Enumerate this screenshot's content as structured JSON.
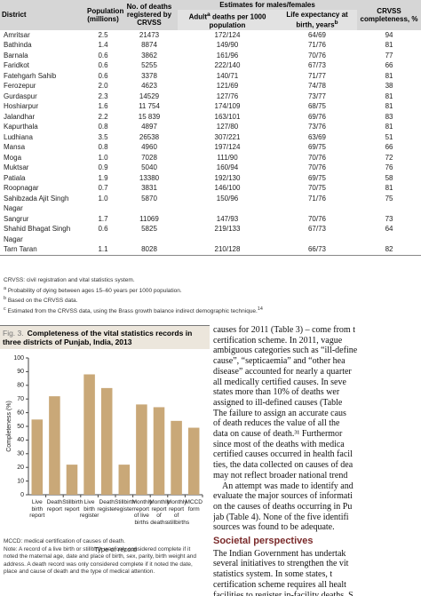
{
  "table": {
    "header": {
      "district": "District",
      "population": "Population (millions)",
      "deaths": "No. of deaths registered by CRVSS",
      "estimates": "Estimates for males/females",
      "adult_pre": "Adult",
      "adult_sup": "a",
      "adult_post": "deaths per 1000 population",
      "life": "Life expectancy at birth, years",
      "life_sup": "b",
      "completeness": "CRVSS completeness, %"
    },
    "rows": [
      [
        "Amritsar",
        "2.5",
        "21473",
        "172/124",
        "64/69",
        "94"
      ],
      [
        "Bathinda",
        "1.4",
        "8874",
        "149/90",
        "71/76",
        "81"
      ],
      [
        "Barnala",
        "0.6",
        "3862",
        "161/96",
        "70/76",
        "77"
      ],
      [
        "Faridkot",
        "0.6",
        "5255",
        "222/140",
        "67/73",
        "66"
      ],
      [
        "Fatehgarh Sahib",
        "0.6",
        "3378",
        "140/71",
        "71/77",
        "81"
      ],
      [
        "Ferozepur",
        "2.0",
        "4623",
        "121/69",
        "74/78",
        "38"
      ],
      [
        "Gurdaspur",
        "2.3",
        "14529",
        "127/76",
        "73/77",
        "81"
      ],
      [
        "Hoshiarpur",
        "1.6",
        "11 754",
        "174/109",
        "68/75",
        "81"
      ],
      [
        "Jalandhar",
        "2.2",
        "15 839",
        "163/101",
        "69/76",
        "83"
      ],
      [
        "Kapurthala",
        "0.8",
        "4897",
        "127/80",
        "73/76",
        "81"
      ],
      [
        "Ludhiana",
        "3.5",
        "26538",
        "307/221",
        "63/69",
        "51"
      ],
      [
        "Mansa",
        "0.8",
        "4960",
        "197/124",
        "69/75",
        "66"
      ],
      [
        "Moga",
        "1.0",
        "7028",
        "111/90",
        "70/76",
        "72"
      ],
      [
        "Muktsar",
        "0.9",
        "5040",
        "160/94",
        "70/76",
        "76"
      ],
      [
        "Patiala",
        "1.9",
        "13380",
        "192/130",
        "69/75",
        "58"
      ],
      [
        "Roopnagar",
        "0.7",
        "3831",
        "146/100",
        "70/75",
        "81"
      ],
      [
        "Sahibzada Ajit Singh Nagar",
        "1.0",
        "5870",
        "150/96",
        "71/76",
        "75"
      ],
      [
        "Sangrur",
        "1.7",
        "11069",
        "147/93",
        "70/76",
        "73"
      ],
      [
        "Shahid Bhagat Singh Nagar",
        "0.6",
        "5825",
        "219/133",
        "67/73",
        "64"
      ],
      [
        "Tarn Taran",
        "1.1",
        "8028",
        "210/128",
        "66/73",
        "82"
      ]
    ]
  },
  "footnotes": {
    "abbrev": "CRVSS: civil registration and vital statistics system.",
    "notes": [
      {
        "sup": "a",
        "text": "Probability of dying between ages 15–60 years per 1000 population."
      },
      {
        "sup": "b",
        "text": "Based on the CRVSS data."
      },
      {
        "sup": "c",
        "text": "Estimated from the CRVSS data, using the Brass growth balance indirect demographic technique.",
        "ref": "14"
      }
    ]
  },
  "chart_data": {
    "type": "bar",
    "figure_label": "Fig. 3.",
    "title": "Completeness of the vital statistics records in three districts of Punjab, India, 2013",
    "y_label": "Completeness (%)",
    "x_label": "Type of record",
    "categories": [
      "Live birth report",
      "Death report",
      "Stillbirth report",
      "Live birth register",
      "Death register",
      "Stillbirth register",
      "Monthly report of live births",
      "Monthly report of deaths",
      "Monthly report of stillbirths",
      "MCCD form"
    ],
    "values": [
      55,
      72,
      22,
      88,
      78,
      22,
      66,
      64,
      54,
      49
    ],
    "color": "#c9a878",
    "ylim": [
      0,
      100
    ],
    "yticks": [
      0,
      10,
      20,
      30,
      40,
      50,
      60,
      70,
      80,
      90,
      100
    ],
    "grid": false
  },
  "figure_notes": [
    "MCCD: medical certification of causes of death.",
    "Note: A record of a live birth or stillbirth was only considered complete if it noted the maternal age, date and place of birth, sex, parity, birth weight and address. A death record was only considered complete if it noted the date, place and cause of death and the type of medical attention."
  ],
  "body_text": {
    "paragraph_1": [
      "causes for 2011 (Table 3) – come from t",
      "certification scheme. In 2011, vague",
      "ambiguous categories such as “ill-define",
      "cause”, “septicaemia” and “other hea",
      "disease” accounted for nearly a quarter",
      "all medically certified causes. In seve",
      "states more than 10% of deaths wer",
      "assigned to ill-defined causes (Table",
      "The failure to assign an accurate caus",
      "of death reduces the value of all the",
      "data on cause of death.³¹ Furthermor",
      "since most of the deaths with medica",
      "certified causes occurred in health facil",
      "ties, the data collected on causes of dea",
      "may not reflect broader national trend"
    ],
    "paragraph_2": [
      "An attempt was made to identify and",
      "evaluate the major sources of informati",
      "on the causes of deaths occurring in Pu",
      "jab (Table 4). None of the five identifi",
      "sources was found to be adequate."
    ],
    "heading": "Societal perspectives",
    "paragraph_3": [
      "The Indian Government has undertak",
      "several initiatives to strengthen the vit",
      "statistics system. In some states, t",
      "certification scheme requires all healt",
      "facilities to register in-facility deaths. S"
    ]
  }
}
